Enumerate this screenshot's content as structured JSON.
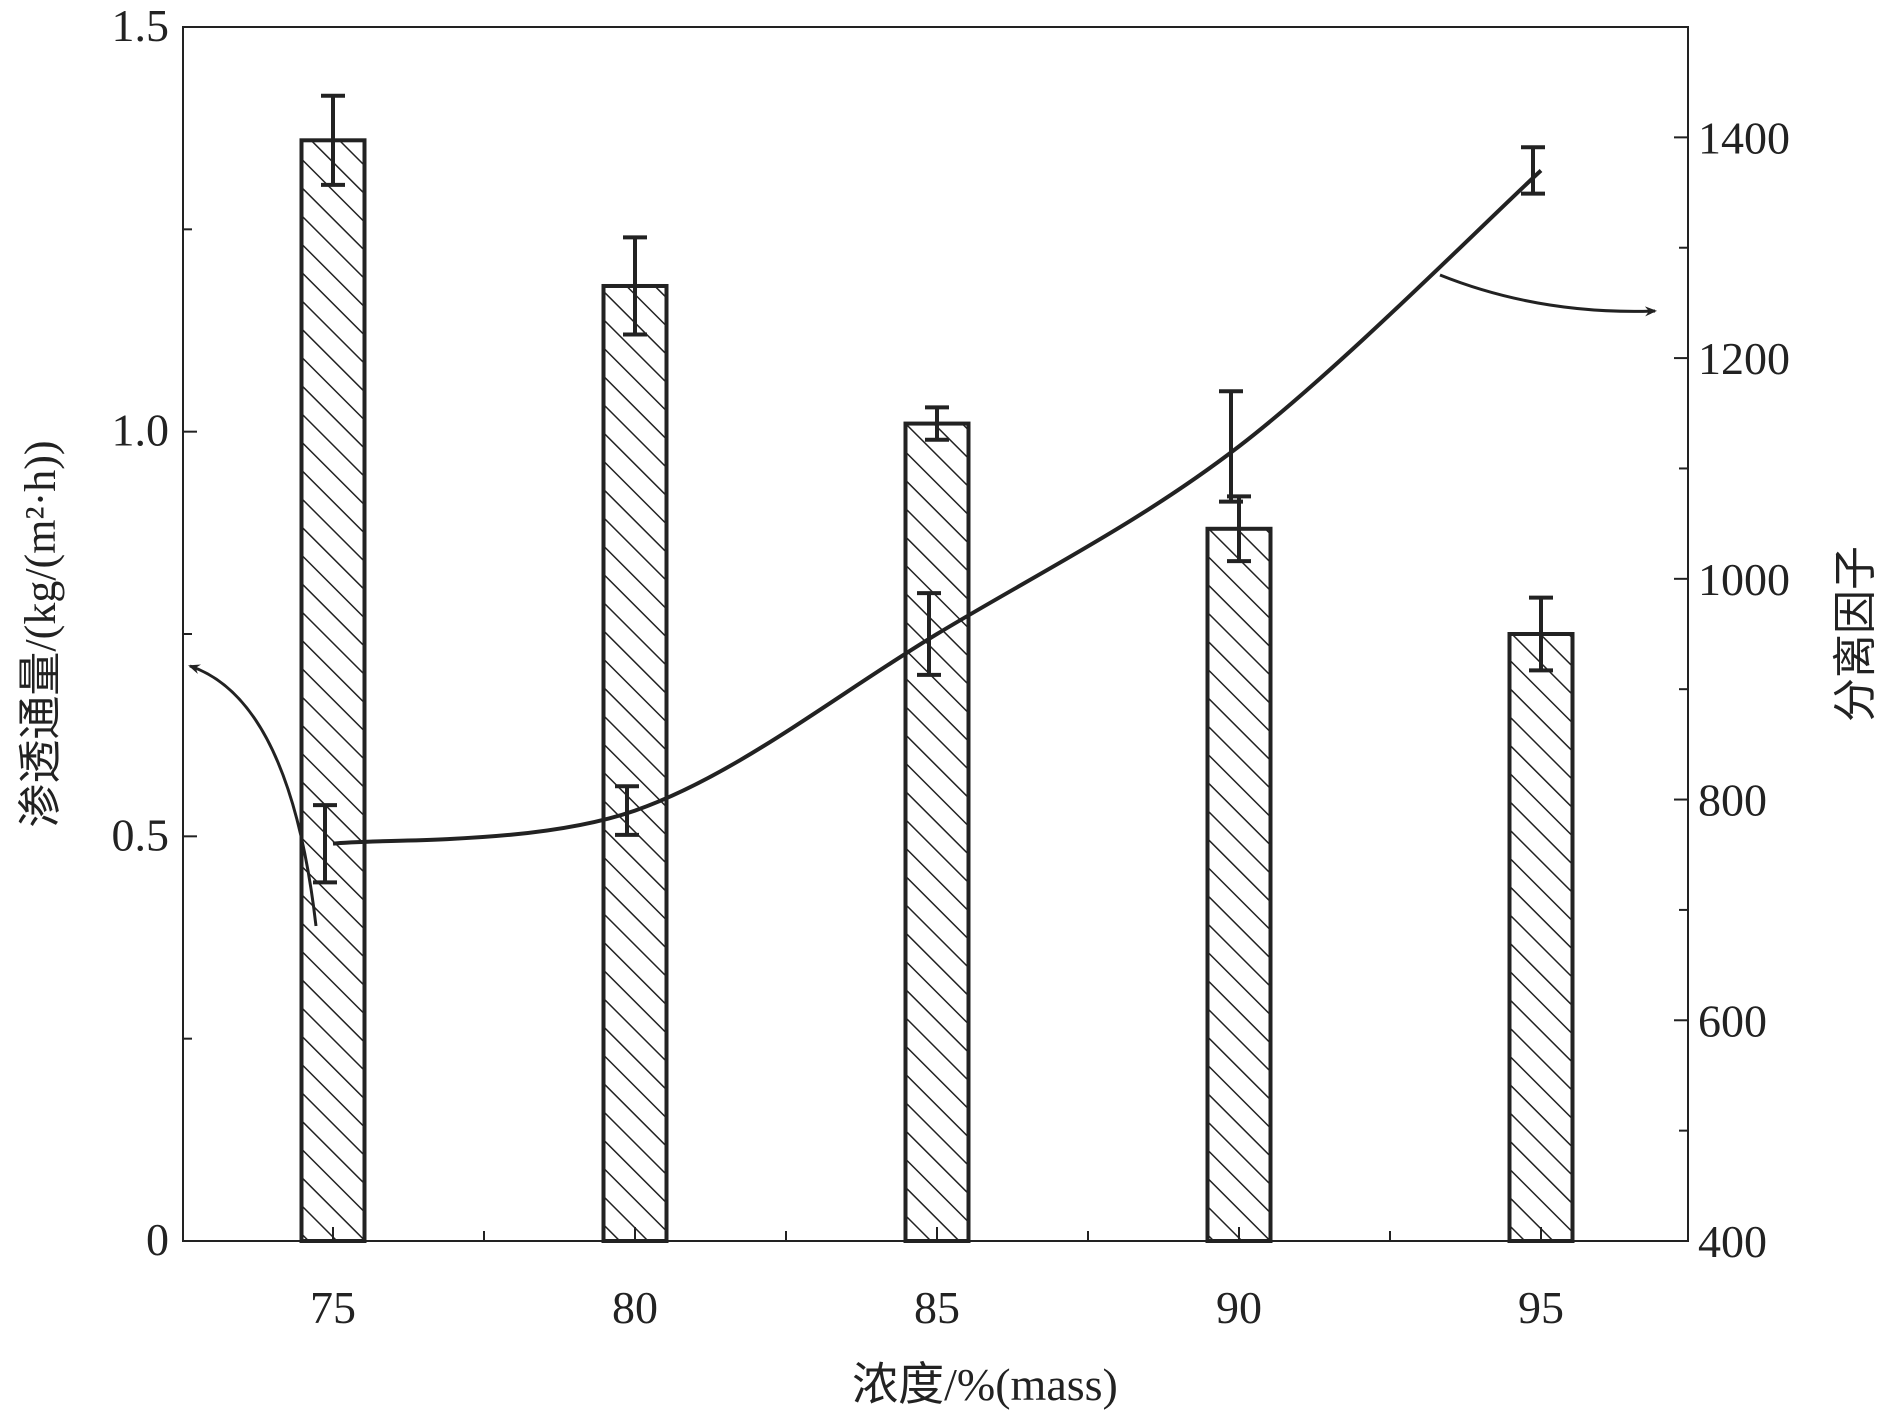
{
  "chart_data": {
    "type": "bar",
    "title": "",
    "xlabel": "浓度/%(mass)",
    "ylabel": "渗透通量/(kg/(m²·h))",
    "ylabel_right": "分离因子",
    "categories": [
      "75",
      "80",
      "85",
      "90",
      "95"
    ],
    "ylim": [
      0,
      1.5
    ],
    "ylim_right": [
      400,
      1500
    ],
    "yticks": [
      "0",
      "0.5",
      "1.0",
      "1.5"
    ],
    "yticks_right": [
      "400",
      "600",
      "800",
      "1000",
      "1200",
      "1400"
    ],
    "grid": false,
    "series": [
      {
        "name": "渗透通量",
        "type": "bar",
        "axis": "left",
        "pattern": "hatched",
        "values": [
          1.36,
          1.18,
          1.01,
          0.88,
          0.75
        ],
        "errors": [
          0.055,
          0.06,
          0.02,
          0.04,
          0.045
        ]
      },
      {
        "name": "分离因子",
        "type": "line",
        "axis": "right",
        "values": [
          760,
          790,
          950,
          1120,
          1370
        ],
        "errors": [
          35,
          22,
          37,
          50,
          21
        ]
      }
    ],
    "annotations": [
      "arrow from bars to left axis",
      "arrow from line to right axis"
    ]
  }
}
